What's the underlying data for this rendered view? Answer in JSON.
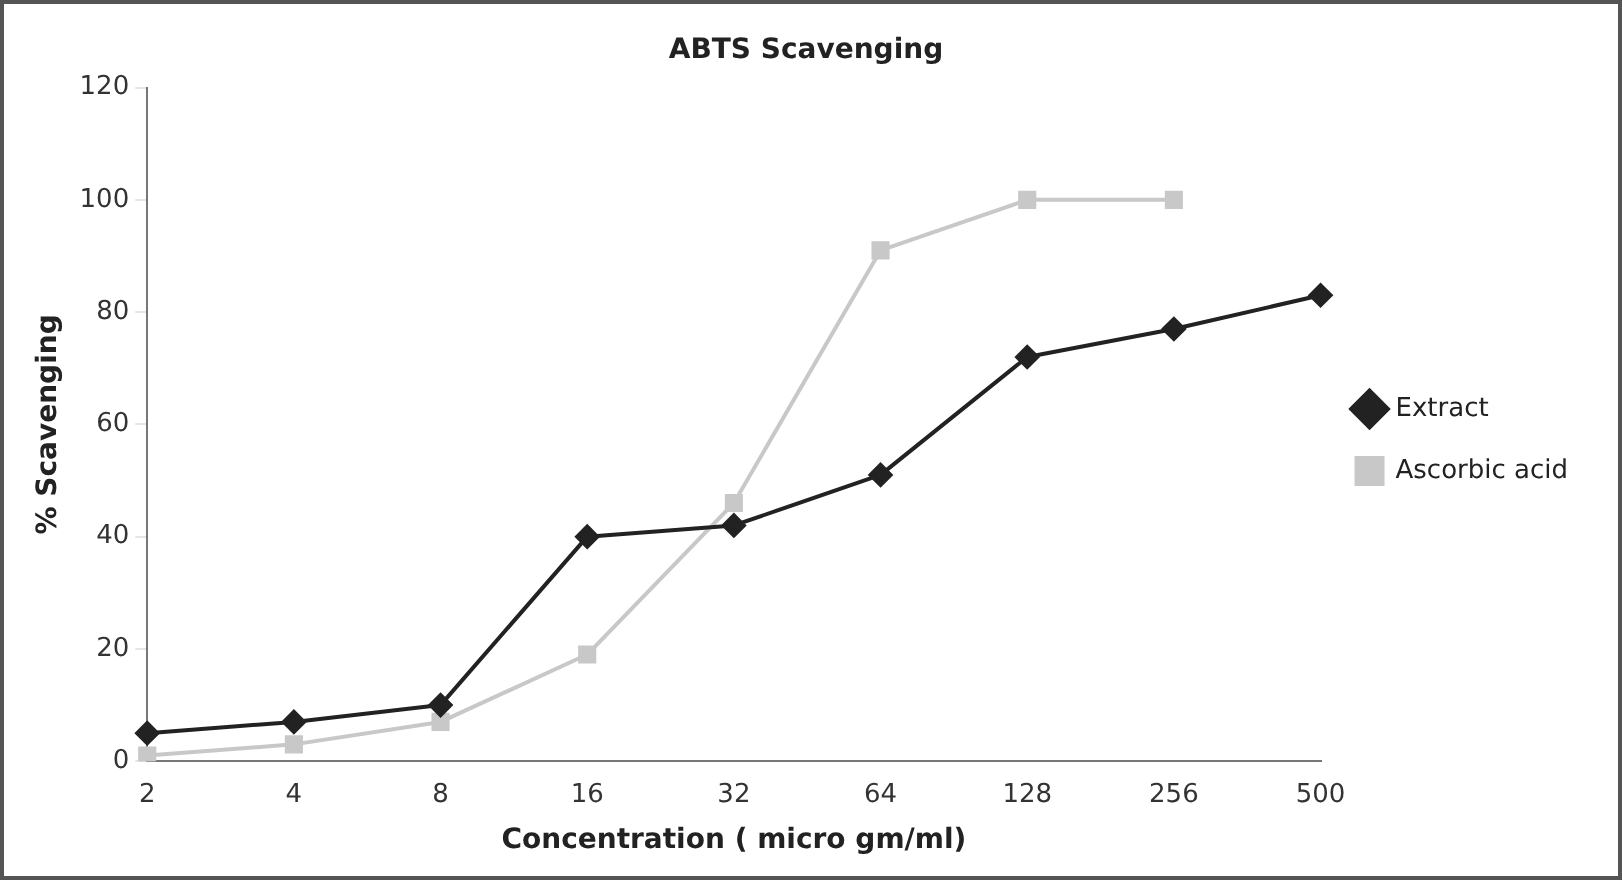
{
  "chart_data": {
    "type": "line",
    "title": "ABTS Scavenging",
    "xlabel": "Concentration ( micro gm/ml)",
    "ylabel": "% Scavenging",
    "categories": [
      "2",
      "4",
      "8",
      "16",
      "32",
      "64",
      "128",
      "256",
      "500"
    ],
    "series": [
      {
        "name": "Extract",
        "color": "#222222",
        "marker": "diamond",
        "values": [
          5,
          7,
          10,
          40,
          42,
          51,
          72,
          77,
          83
        ]
      },
      {
        "name": "Ascorbic acid",
        "color": "#c8c8c8",
        "marker": "square",
        "values": [
          1,
          3,
          7,
          19,
          46,
          91,
          100,
          100,
          null
        ]
      }
    ],
    "ylim": [
      0,
      120
    ],
    "yticks": [
      0,
      20,
      40,
      60,
      80,
      100,
      120
    ],
    "grid": false,
    "legend": "right"
  }
}
